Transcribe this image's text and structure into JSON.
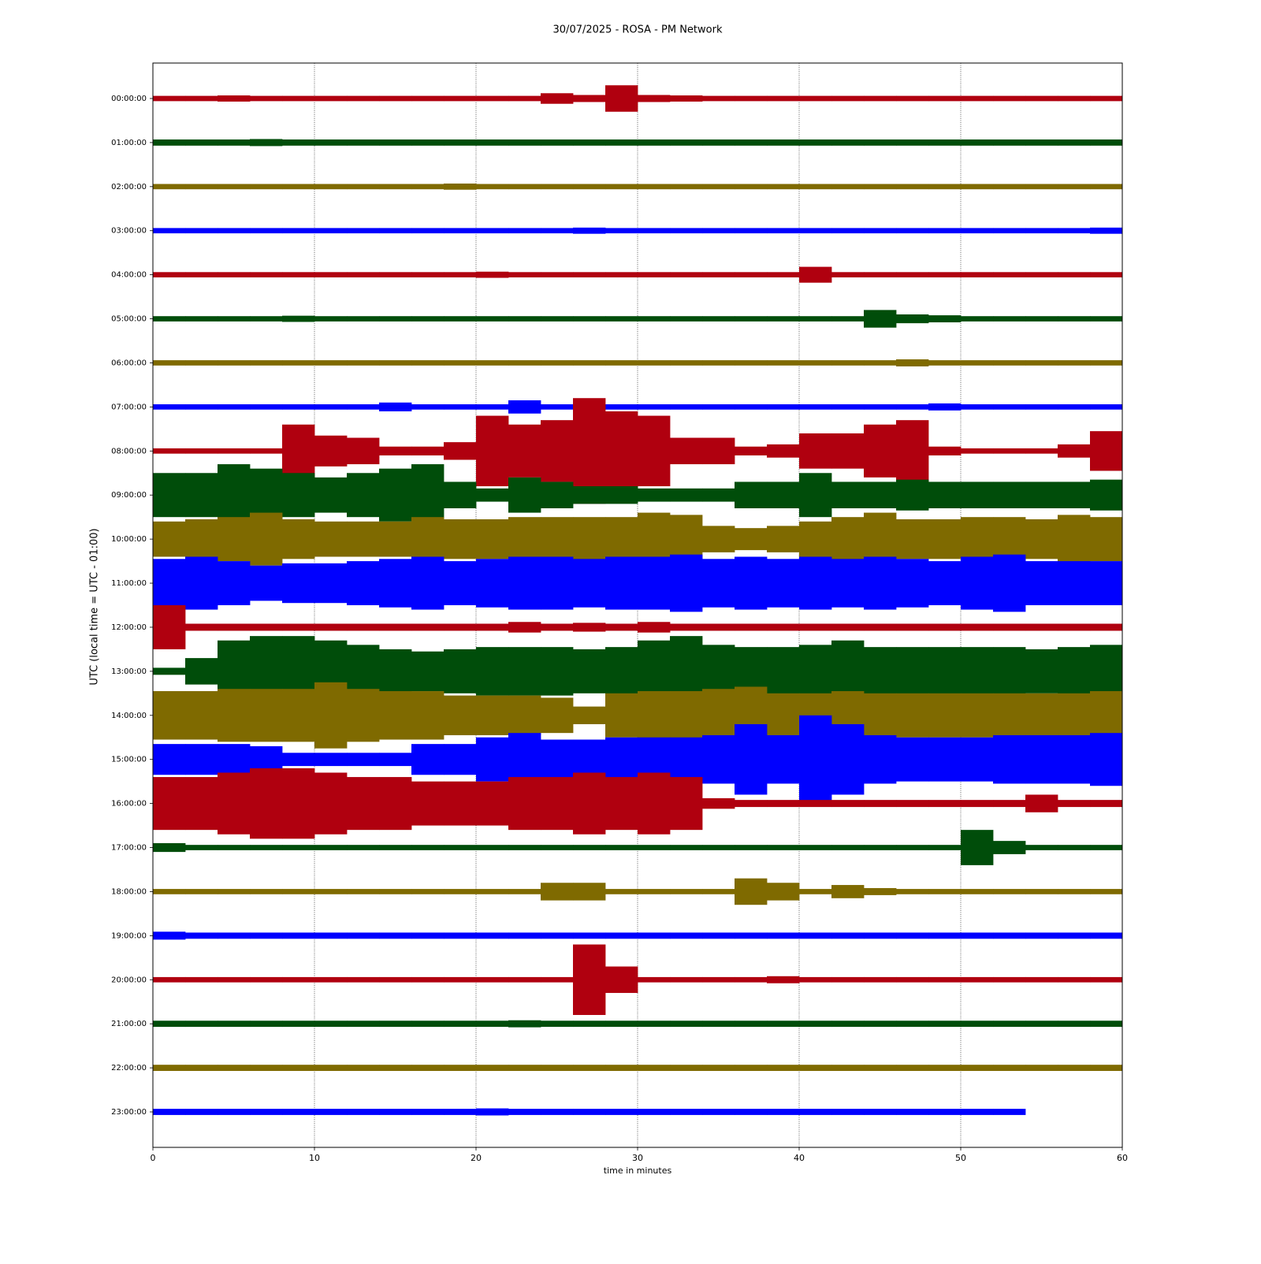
{
  "chart_data": {
    "type": "helicorder",
    "title": "30/07/2025 - ROSA - PM Network",
    "y_label": "UTC (local time = UTC - 01:00)",
    "x_label": "time in minutes",
    "xlim": [
      0,
      60
    ],
    "xticks": [
      0,
      10,
      20,
      30,
      40,
      50,
      60
    ],
    "grid": true,
    "categories": [
      "00:00:00",
      "01:00:00",
      "02:00:00",
      "03:00:00",
      "04:00:00",
      "05:00:00",
      "06:00:00",
      "07:00:00",
      "08:00:00",
      "09:00:00",
      "10:00:00",
      "11:00:00",
      "12:00:00",
      "13:00:00",
      "14:00:00",
      "15:00:00",
      "16:00:00",
      "17:00:00",
      "18:00:00",
      "19:00:00",
      "20:00:00",
      "21:00:00",
      "22:00:00",
      "23:00:00"
    ],
    "x": [
      1,
      3,
      5,
      7,
      9,
      11,
      13,
      15,
      17,
      19,
      21,
      23,
      25,
      27,
      29,
      31,
      33,
      35,
      37,
      39,
      41,
      43,
      45,
      47,
      49,
      51,
      53,
      55,
      57,
      59
    ],
    "series": [
      {
        "color": "#b0000f",
        "values": [
          0.06,
          0.06,
          0.07,
          0.06,
          0.06,
          0.06,
          0.06,
          0.06,
          0.06,
          0.06,
          0.06,
          0.06,
          0.12,
          0.08,
          0.3,
          0.08,
          0.07,
          0.06,
          0.06,
          0.06,
          0.06,
          0.06,
          0.06,
          0.06,
          0.06,
          0.06,
          0.06,
          0.06,
          0.06,
          0.06
        ]
      },
      {
        "color": "#004d0a",
        "values": [
          0.07,
          0.07,
          0.07,
          0.08,
          0.07,
          0.07,
          0.07,
          0.07,
          0.07,
          0.07,
          0.07,
          0.07,
          0.07,
          0.07,
          0.07,
          0.07,
          0.07,
          0.07,
          0.07,
          0.07,
          0.07,
          0.07,
          0.07,
          0.07,
          0.07,
          0.07,
          0.07,
          0.07,
          0.07,
          0.07
        ]
      },
      {
        "color": "#7f6a00",
        "values": [
          0.06,
          0.06,
          0.06,
          0.06,
          0.06,
          0.06,
          0.06,
          0.06,
          0.06,
          0.07,
          0.06,
          0.06,
          0.06,
          0.06,
          0.06,
          0.06,
          0.06,
          0.06,
          0.06,
          0.06,
          0.06,
          0.06,
          0.06,
          0.06,
          0.06,
          0.06,
          0.06,
          0.06,
          0.06,
          0.06
        ]
      },
      {
        "color": "#0000ff",
        "values": [
          0.06,
          0.06,
          0.06,
          0.06,
          0.06,
          0.06,
          0.06,
          0.06,
          0.06,
          0.06,
          0.06,
          0.06,
          0.06,
          0.07,
          0.06,
          0.06,
          0.06,
          0.06,
          0.06,
          0.06,
          0.06,
          0.06,
          0.06,
          0.06,
          0.06,
          0.06,
          0.06,
          0.06,
          0.06,
          0.07
        ]
      },
      {
        "color": "#b0000f",
        "values": [
          0.06,
          0.06,
          0.06,
          0.06,
          0.06,
          0.06,
          0.06,
          0.06,
          0.06,
          0.06,
          0.07,
          0.06,
          0.06,
          0.06,
          0.06,
          0.06,
          0.06,
          0.06,
          0.06,
          0.06,
          0.18,
          0.06,
          0.06,
          0.06,
          0.06,
          0.06,
          0.06,
          0.06,
          0.06,
          0.06
        ]
      },
      {
        "color": "#004d0a",
        "values": [
          0.06,
          0.06,
          0.06,
          0.06,
          0.07,
          0.06,
          0.06,
          0.06,
          0.06,
          0.06,
          0.06,
          0.06,
          0.06,
          0.06,
          0.06,
          0.06,
          0.06,
          0.06,
          0.06,
          0.06,
          0.06,
          0.06,
          0.2,
          0.1,
          0.08,
          0.06,
          0.06,
          0.06,
          0.06,
          0.06
        ]
      },
      {
        "color": "#7f6a00",
        "values": [
          0.06,
          0.06,
          0.06,
          0.06,
          0.06,
          0.06,
          0.06,
          0.06,
          0.06,
          0.06,
          0.06,
          0.06,
          0.06,
          0.06,
          0.06,
          0.06,
          0.06,
          0.06,
          0.06,
          0.06,
          0.06,
          0.06,
          0.06,
          0.08,
          0.06,
          0.06,
          0.06,
          0.06,
          0.06,
          0.06
        ]
      },
      {
        "color": "#0000ff",
        "values": [
          0.06,
          0.06,
          0.06,
          0.06,
          0.06,
          0.06,
          0.06,
          0.1,
          0.06,
          0.06,
          0.06,
          0.15,
          0.06,
          0.06,
          0.06,
          0.06,
          0.06,
          0.06,
          0.06,
          0.06,
          0.06,
          0.06,
          0.06,
          0.06,
          0.08,
          0.06,
          0.06,
          0.06,
          0.06,
          0.06
        ]
      },
      {
        "color": "#b0000f",
        "values": [
          0.06,
          0.06,
          0.06,
          0.06,
          0.6,
          0.35,
          0.3,
          0.1,
          0.1,
          0.2,
          0.8,
          0.6,
          0.7,
          1.2,
          0.9,
          0.8,
          0.3,
          0.3,
          0.1,
          0.15,
          0.4,
          0.4,
          0.6,
          0.7,
          0.1,
          0.06,
          0.06,
          0.06,
          0.15,
          0.45
        ]
      },
      {
        "color": "#004d0a",
        "values": [
          0.5,
          0.5,
          0.7,
          0.6,
          0.5,
          0.4,
          0.5,
          0.6,
          0.7,
          0.3,
          0.15,
          0.4,
          0.3,
          0.2,
          0.2,
          0.15,
          0.15,
          0.15,
          0.3,
          0.3,
          0.5,
          0.3,
          0.3,
          0.35,
          0.3,
          0.3,
          0.3,
          0.3,
          0.3,
          0.35
        ]
      },
      {
        "color": "#7f6a00",
        "values": [
          0.4,
          0.45,
          0.5,
          0.6,
          0.45,
          0.4,
          0.4,
          0.4,
          0.5,
          0.45,
          0.45,
          0.5,
          0.5,
          0.5,
          0.5,
          0.6,
          0.55,
          0.3,
          0.25,
          0.3,
          0.4,
          0.5,
          0.6,
          0.45,
          0.45,
          0.5,
          0.5,
          0.45,
          0.55,
          0.5
        ]
      },
      {
        "color": "#0000ff",
        "values": [
          0.55,
          0.6,
          0.5,
          0.4,
          0.45,
          0.45,
          0.5,
          0.55,
          0.6,
          0.5,
          0.55,
          0.6,
          0.6,
          0.55,
          0.6,
          0.6,
          0.65,
          0.55,
          0.6,
          0.55,
          0.6,
          0.55,
          0.6,
          0.55,
          0.5,
          0.6,
          0.65,
          0.5,
          0.5,
          0.5
        ]
      },
      {
        "color": "#b0000f",
        "values": [
          0.5,
          0.08,
          0.08,
          0.08,
          0.08,
          0.08,
          0.08,
          0.08,
          0.08,
          0.08,
          0.08,
          0.12,
          0.08,
          0.1,
          0.08,
          0.12,
          0.08,
          0.08,
          0.08,
          0.08,
          0.08,
          0.08,
          0.08,
          0.08,
          0.08,
          0.08,
          0.08,
          0.08,
          0.08,
          0.08
        ]
      },
      {
        "color": "#004d0a",
        "values": [
          0.08,
          0.3,
          0.7,
          0.8,
          0.8,
          0.7,
          0.6,
          0.5,
          0.45,
          0.5,
          0.55,
          0.55,
          0.55,
          0.5,
          0.55,
          0.7,
          0.8,
          0.6,
          0.55,
          0.55,
          0.6,
          0.7,
          0.55,
          0.55,
          0.55,
          0.55,
          0.55,
          0.5,
          0.55,
          0.6
        ]
      },
      {
        "color": "#7f6a00",
        "values": [
          0.55,
          0.55,
          0.6,
          0.6,
          0.6,
          0.75,
          0.6,
          0.55,
          0.55,
          0.45,
          0.45,
          0.45,
          0.4,
          0.2,
          0.5,
          0.55,
          0.55,
          0.6,
          0.65,
          0.5,
          0.5,
          0.55,
          0.5,
          0.5,
          0.5,
          0.5,
          0.5,
          0.5,
          0.5,
          0.55
        ]
      },
      {
        "color": "#0000ff",
        "values": [
          0.35,
          0.35,
          0.35,
          0.3,
          0.15,
          0.15,
          0.15,
          0.15,
          0.35,
          0.35,
          0.5,
          0.6,
          0.45,
          0.45,
          0.5,
          0.5,
          0.5,
          0.55,
          0.8,
          0.55,
          1.0,
          0.8,
          0.55,
          0.5,
          0.5,
          0.5,
          0.55,
          0.55,
          0.55,
          0.6
        ]
      },
      {
        "color": "#b0000f",
        "values": [
          0.6,
          0.6,
          0.7,
          0.8,
          0.8,
          0.7,
          0.6,
          0.6,
          0.5,
          0.5,
          0.5,
          0.6,
          0.6,
          0.7,
          0.6,
          0.7,
          0.6,
          0.12,
          0.08,
          0.08,
          0.08,
          0.08,
          0.08,
          0.08,
          0.08,
          0.08,
          0.08,
          0.2,
          0.08,
          0.08
        ]
      },
      {
        "color": "#004d0a",
        "values": [
          0.1,
          0.06,
          0.06,
          0.06,
          0.06,
          0.06,
          0.06,
          0.06,
          0.06,
          0.06,
          0.06,
          0.06,
          0.06,
          0.06,
          0.06,
          0.06,
          0.06,
          0.06,
          0.06,
          0.06,
          0.06,
          0.06,
          0.06,
          0.06,
          0.06,
          0.4,
          0.15,
          0.06,
          0.06,
          0.06
        ]
      },
      {
        "color": "#7f6a00",
        "values": [
          0.06,
          0.06,
          0.06,
          0.06,
          0.06,
          0.06,
          0.06,
          0.06,
          0.06,
          0.06,
          0.06,
          0.06,
          0.2,
          0.2,
          0.06,
          0.06,
          0.06,
          0.06,
          0.3,
          0.2,
          0.06,
          0.15,
          0.08,
          0.06,
          0.06,
          0.06,
          0.06,
          0.06,
          0.06,
          0.06
        ]
      },
      {
        "color": "#0000ff",
        "values": [
          0.09,
          0.07,
          0.07,
          0.07,
          0.07,
          0.07,
          0.07,
          0.07,
          0.07,
          0.07,
          0.07,
          0.07,
          0.07,
          0.07,
          0.07,
          0.07,
          0.07,
          0.07,
          0.07,
          0.07,
          0.07,
          0.07,
          0.07,
          0.07,
          0.07,
          0.07,
          0.07,
          0.07,
          0.07,
          0.07
        ]
      },
      {
        "color": "#b0000f",
        "values": [
          0.06,
          0.06,
          0.06,
          0.06,
          0.06,
          0.06,
          0.06,
          0.06,
          0.06,
          0.06,
          0.06,
          0.06,
          0.06,
          0.8,
          0.3,
          0.06,
          0.06,
          0.06,
          0.06,
          0.08,
          0.06,
          0.06,
          0.06,
          0.06,
          0.06,
          0.06,
          0.06,
          0.06,
          0.06,
          0.06
        ]
      },
      {
        "color": "#004d0a",
        "values": [
          0.07,
          0.07,
          0.07,
          0.07,
          0.07,
          0.07,
          0.07,
          0.07,
          0.07,
          0.07,
          0.07,
          0.08,
          0.07,
          0.07,
          0.07,
          0.07,
          0.07,
          0.07,
          0.07,
          0.07,
          0.07,
          0.07,
          0.07,
          0.07,
          0.07,
          0.07,
          0.07,
          0.07,
          0.07,
          0.07
        ]
      },
      {
        "color": "#7f6a00",
        "values": [
          0.07,
          0.07,
          0.07,
          0.07,
          0.07,
          0.07,
          0.07,
          0.07,
          0.07,
          0.07,
          0.07,
          0.07,
          0.07,
          0.07,
          0.07,
          0.07,
          0.07,
          0.07,
          0.07,
          0.07,
          0.07,
          0.07,
          0.07,
          0.07,
          0.07,
          0.07,
          0.07,
          0.07,
          0.07,
          0.07
        ]
      },
      {
        "color": "#0000ff",
        "values": [
          0.07,
          0.07,
          0.07,
          0.07,
          0.07,
          0.07,
          0.07,
          0.07,
          0.07,
          0.07,
          0.08,
          0.07,
          0.07,
          0.07,
          0.07,
          0.07,
          0.07,
          0.07,
          0.07,
          0.07,
          0.07,
          0.07,
          0.07,
          0.07,
          0.07,
          0.07,
          0.07,
          null,
          null,
          null
        ]
      }
    ]
  }
}
